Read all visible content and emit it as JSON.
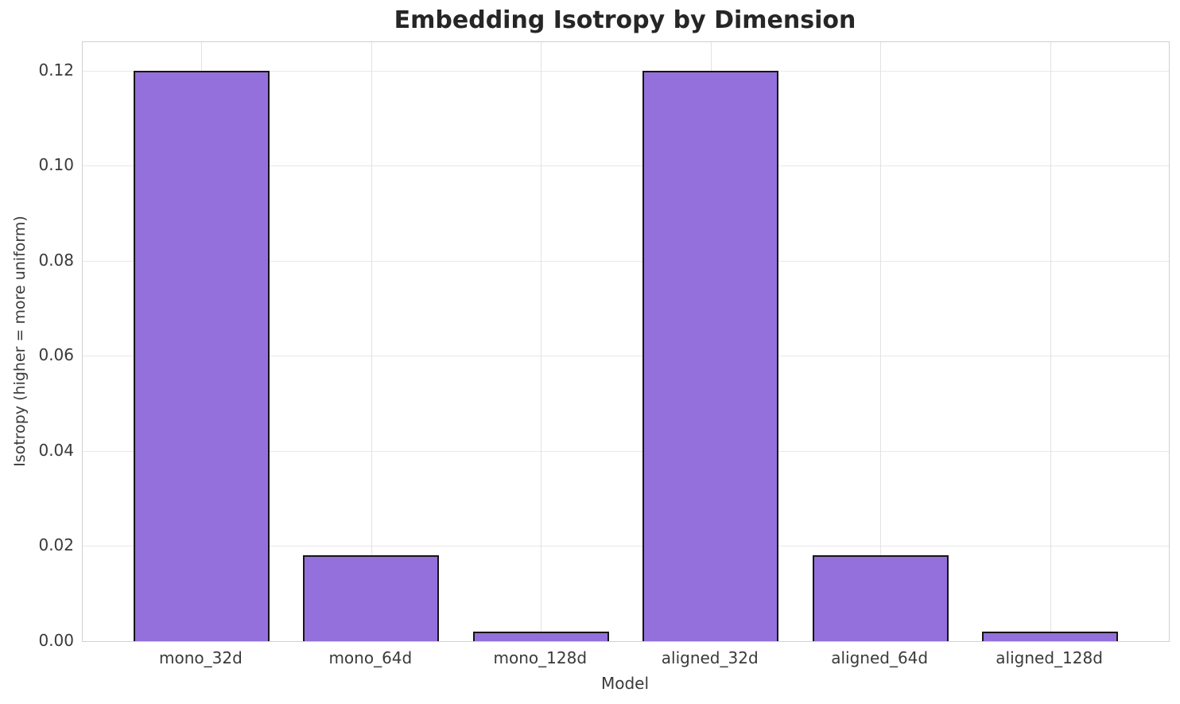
{
  "chart_data": {
    "type": "bar",
    "title": "Embedding Isotropy by Dimension",
    "xlabel": "Model",
    "ylabel": "Isotropy (higher = more uniform)",
    "categories": [
      "mono_32d",
      "mono_64d",
      "mono_128d",
      "aligned_32d",
      "aligned_64d",
      "aligned_128d"
    ],
    "values": [
      0.12,
      0.018,
      0.002,
      0.12,
      0.018,
      0.002
    ],
    "yticks": [
      "0.00",
      "0.02",
      "0.04",
      "0.06",
      "0.08",
      "0.10",
      "0.12"
    ],
    "ylim": [
      0,
      0.126
    ],
    "grid": true,
    "legend": "none",
    "bar_color": "#9370DB",
    "bar_edge_color": "#151515",
    "background_color": "#ffffff",
    "grid_color": "#e8e8e8",
    "spine_color": "#d0d0d0",
    "title_color": "#262626",
    "tick_color": "#3a3a3a"
  }
}
